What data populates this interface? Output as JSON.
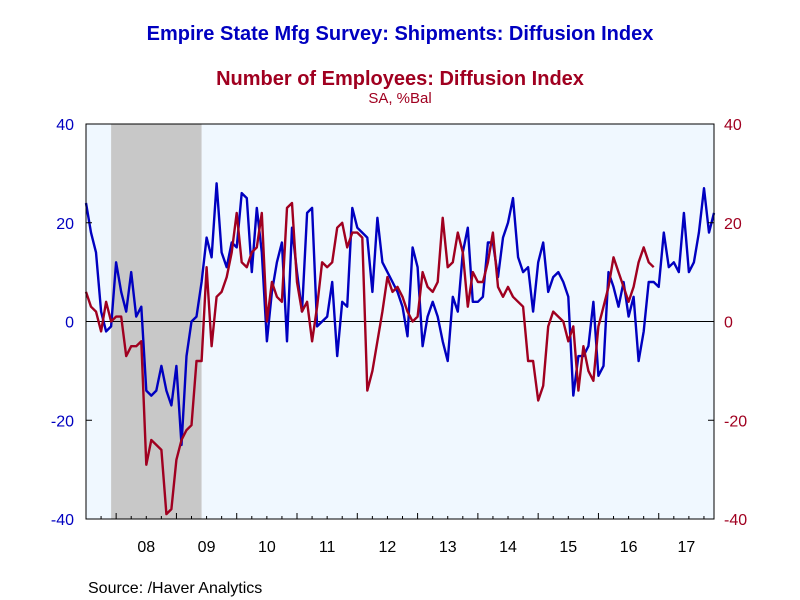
{
  "chart_data": {
    "type": "line",
    "title": "Empire State Mfg Survey: Shipments: Diffusion Index",
    "title2": "Number of Employees: Diffusion Index",
    "subtitle": "SA, %Bal",
    "source": "Source:  /Haver Analytics",
    "x_tick_labels": [
      "08",
      "09",
      "10",
      "11",
      "12",
      "13",
      "14",
      "15",
      "16",
      "17"
    ],
    "y_tick_labels_left": [
      "40",
      "20",
      "0",
      "-20",
      "-40"
    ],
    "y_tick_labels_right": [
      "40",
      "20",
      "0",
      "-20",
      "-40"
    ],
    "ylim": [
      -40,
      40
    ],
    "xlim": [
      "2007-07",
      "2017-12"
    ],
    "x_start_month": "2007-07",
    "grid": false,
    "recession_shading": {
      "start": "2007-12",
      "end": "2009-06",
      "color": "#c8c8c8"
    },
    "plot_background": "#f0f8ff",
    "zero_line": true,
    "series": [
      {
        "name": "Shipments: Diffusion Index",
        "color": "#0000c0",
        "axis": "left",
        "values": [
          24,
          18,
          14,
          2,
          -2,
          -1,
          12,
          6,
          2,
          10,
          1,
          3,
          -14,
          -15,
          -14,
          -9,
          -14,
          -17,
          -9,
          -25,
          -7,
          0,
          1,
          8,
          17,
          13,
          28,
          14,
          11,
          16,
          15,
          26,
          25,
          10,
          23,
          14,
          -4,
          6,
          12,
          16,
          -4,
          19,
          10,
          2,
          22,
          23,
          -1,
          0,
          1,
          8,
          -7,
          4,
          3,
          23,
          19,
          18,
          17,
          6,
          21,
          12,
          10,
          8,
          6,
          3,
          -3,
          15,
          11,
          -5,
          1,
          4,
          1,
          -4,
          -8,
          5,
          2,
          14,
          19,
          4,
          4,
          5,
          16,
          16,
          9,
          17,
          20,
          25,
          13,
          10,
          11,
          2,
          12,
          16,
          6,
          9,
          10,
          8,
          5,
          -15,
          -7,
          -7,
          -5,
          4,
          -11,
          -9,
          10,
          7,
          3,
          8,
          1,
          5,
          -8,
          -2,
          8,
          8,
          7,
          18,
          11,
          12,
          10,
          22,
          10,
          12,
          18,
          27,
          18,
          22
        ]
      },
      {
        "name": "Number of Employees: Diffusion Index",
        "color": "#a00020",
        "axis": "right",
        "values": [
          6,
          3,
          2,
          -2,
          4,
          0,
          1,
          1,
          -7,
          -5,
          -5,
          -4,
          -29,
          -24,
          -25,
          -26,
          -39,
          -38,
          -28,
          -24,
          -22,
          -21,
          -8,
          -8,
          11,
          -5,
          5,
          6,
          9,
          14,
          22,
          12,
          11,
          14,
          15,
          22,
          0,
          8,
          5,
          4,
          23,
          24,
          8,
          2,
          4,
          -4,
          3,
          12,
          11,
          12,
          19,
          20,
          15,
          18,
          18,
          17,
          -14,
          -10,
          -4,
          2,
          9,
          6,
          7,
          5,
          2,
          0,
          1,
          10,
          7,
          6,
          8,
          21,
          11,
          12,
          18,
          14,
          3,
          10,
          8,
          8,
          12,
          18,
          7,
          5,
          7,
          5,
          4,
          3,
          -8,
          -8,
          -16,
          -13,
          -1,
          2,
          1,
          0,
          -4,
          -1,
          -14,
          -5,
          -10,
          -12,
          -1,
          3,
          7,
          13,
          10,
          7,
          4,
          7,
          12,
          15,
          12,
          11
        ]
      }
    ]
  }
}
